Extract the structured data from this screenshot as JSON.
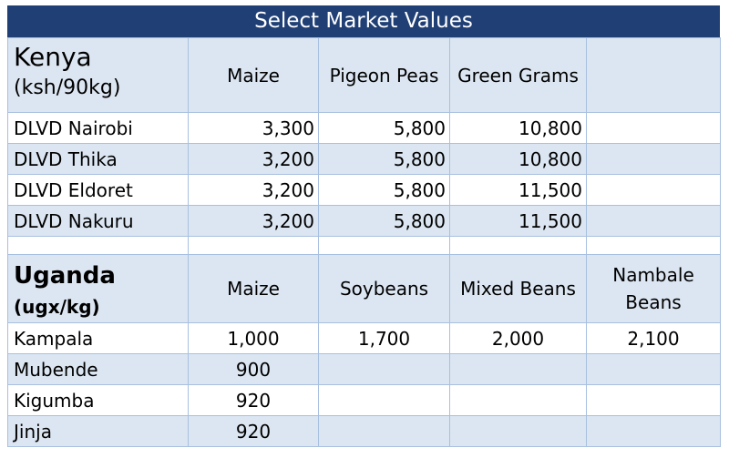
{
  "title": "Select Market Values",
  "kenya": {
    "country": "Kenya",
    "unit": "(ksh/90kg)",
    "columns": [
      "Maize",
      "Pigeon Peas",
      "Green Grams",
      ""
    ],
    "rows": [
      {
        "label": "DLVD Nairobi",
        "values": [
          "3,300",
          "5,800",
          "10,800",
          ""
        ]
      },
      {
        "label": "DLVD Thika",
        "values": [
          "3,200",
          "5,800",
          "10,800",
          ""
        ]
      },
      {
        "label": "DLVD Eldoret",
        "values": [
          "3,200",
          "5,800",
          "11,500",
          ""
        ]
      },
      {
        "label": "DLVD Nakuru",
        "values": [
          "3,200",
          "5,800",
          "11,500",
          ""
        ]
      }
    ]
  },
  "uganda": {
    "country": "Uganda",
    "unit": "(ugx/kg)",
    "columns": [
      "Maize",
      "Soybeans",
      "Mixed Beans",
      "Nambale Beans"
    ],
    "rows": [
      {
        "label": "Kampala",
        "values": [
          "1,000",
          "1,700",
          "2,000",
          "2,100"
        ]
      },
      {
        "label": "Mubende",
        "values": [
          "900",
          "",
          "",
          ""
        ]
      },
      {
        "label": "Kigumba",
        "values": [
          "920",
          "",
          "",
          ""
        ]
      },
      {
        "label": "Jinja",
        "values": [
          "920",
          "",
          "",
          ""
        ]
      }
    ]
  }
}
